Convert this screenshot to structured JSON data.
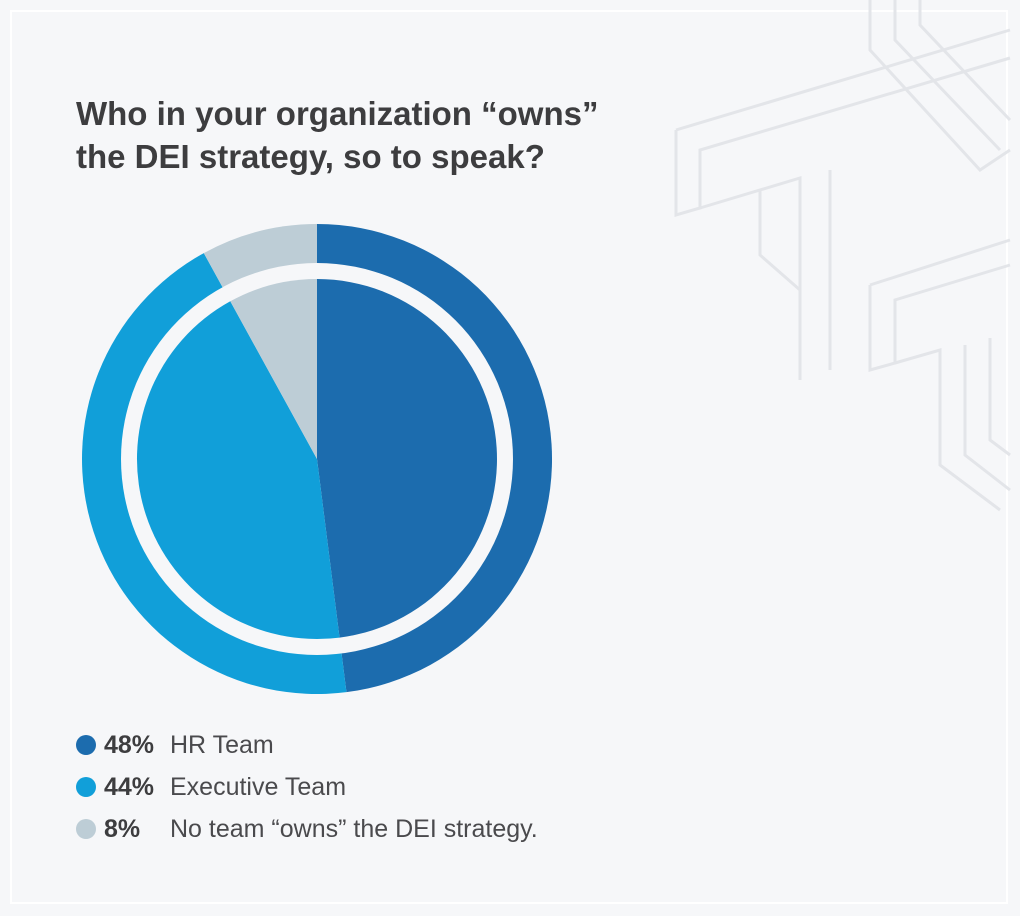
{
  "title": {
    "line1": "Who in your organization “owns”",
    "line2": "the DEI strategy, so to speak?"
  },
  "chart_data": {
    "type": "pie",
    "title": "Who in your organization “owns” the DEI strategy, so to speak?",
    "legend_position": "bottom-left",
    "slices": [
      {
        "label": "HR Team",
        "value": 48,
        "pct_label": "48%",
        "color": "#1c6cae"
      },
      {
        "label": "Executive Team",
        "value": 44,
        "pct_label": "44%",
        "color": "#119fd9"
      },
      {
        "label": "No team “owns” the DEI strategy.",
        "value": 8,
        "pct_label": "8%",
        "color": "#bdcdd6"
      }
    ]
  },
  "colors": {
    "background": "#f6f7f9",
    "separator": "#f6f7f9",
    "decoration": "#e5e7ea",
    "text": "#3d3d3f"
  },
  "decoration": {
    "icon": "stacked-T-logo-outline"
  }
}
